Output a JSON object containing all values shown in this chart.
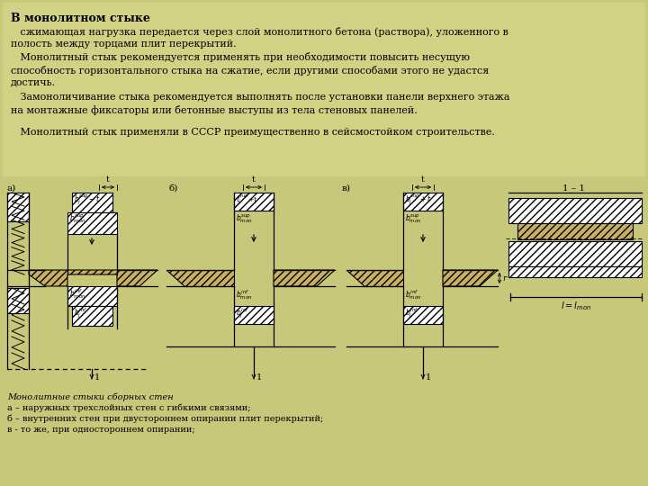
{
  "bg_color": "#c8c87a",
  "text_area_color": "#d0d088",
  "title": "В монолитном стыке",
  "para1": "   сжимающая нагрузка передается через слой монолитного бетона (раствора), уложенного в\nполость между торцами плит перекрытий.",
  "para2": "   Монолитный стык рекомендуется применять при необходимости повысить несущую\nспособность горизонтального стыка на сжатие, если другими способами этого не удастся\nдостичь.",
  "para3": "   Замоноличивание стыка рекомендуется выполнять после установки панели верхнего этажа\nна монтажные фиксаторы или бетонные выступы из тела стеновых панелей.",
  "para4": "   Монолитный стык применяли в СССР преимущественно в сейсмостойком строительстве.",
  "caption_title": "Монолитные стыки сборных стен",
  "caption_a": "а – наружных трехслойных стен с гибкими связями;",
  "caption_b": "б – внутренних стен при двустороннем опирании плит перекрытий;",
  "caption_v": "в - то же, при одностороннем опирании;"
}
